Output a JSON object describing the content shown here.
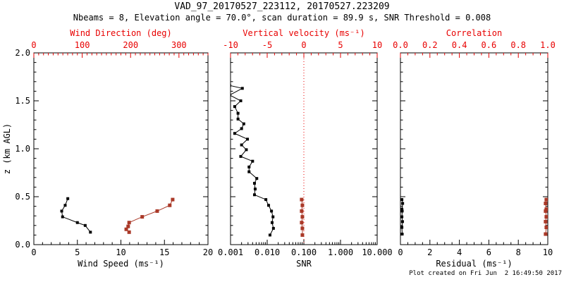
{
  "colors": {
    "black": "#000000",
    "frame": "#000000",
    "axis_red": "#e80000",
    "data_red": "#aa3928"
  },
  "chart_data": {
    "type": "line",
    "title": "VAD_97_20170527_223112, 20170527.223209",
    "subtitle": "Nbeams = 8, Elevation angle = 70.0°, scan duration = 89.9 s, SNR Threshold = 0.008",
    "footer": "Plot created on Fri Jun  2 16:49:50 2017",
    "y_axis": {
      "label": "z (km AGL)",
      "range": [
        0,
        2
      ],
      "tick_values": [
        0,
        0.5,
        1.0,
        1.5,
        2.0
      ],
      "tick_labels": [
        "0.0",
        "0.5",
        "1.0",
        "1.5",
        "2.0"
      ],
      "minor_step": 0.1
    },
    "panels": [
      {
        "name": "wind",
        "bottom_axis": {
          "label": "Wind Speed (ms⁻¹)",
          "scale": "linear",
          "range": [
            0,
            20
          ],
          "tick_values": [
            0,
            5,
            10,
            15,
            20
          ],
          "tick_labels": [
            "0",
            "5",
            "10",
            "15",
            "20"
          ],
          "minor_step": 1,
          "color": "black"
        },
        "top_axis": {
          "label": "Wind Direction (deg)",
          "scale": "linear",
          "range": [
            0,
            360
          ],
          "tick_values": [
            0,
            100,
            200,
            300
          ],
          "tick_labels": [
            "0",
            "100",
            "200",
            "300"
          ],
          "minor_step": 10,
          "color": "axis_red"
        },
        "series": [
          {
            "name": "wind-speed",
            "axis": "bottom",
            "color": "black",
            "points": [
              [
                6.5,
                0.13
              ],
              [
                5.9,
                0.2
              ],
              [
                5.0,
                0.23
              ],
              [
                3.3,
                0.29
              ],
              [
                3.2,
                0.35
              ],
              [
                3.6,
                0.41
              ],
              [
                3.9,
                0.48
              ]
            ]
          },
          {
            "name": "wind-direction",
            "axis": "top",
            "color": "data_red",
            "points": [
              [
                197,
                0.13
              ],
              [
                191,
                0.16
              ],
              [
                195,
                0.19
              ],
              [
                197,
                0.23
              ],
              [
                224,
                0.29
              ],
              [
                255,
                0.35
              ],
              [
                281,
                0.41
              ],
              [
                287,
                0.47
              ]
            ]
          }
        ]
      },
      {
        "name": "snr",
        "bottom_axis": {
          "label": "SNR",
          "scale": "log",
          "range": [
            0.001,
            10
          ],
          "tick_values": [
            0.001,
            0.01,
            0.1,
            1,
            10
          ],
          "tick_labels": [
            "0.001",
            "0.010",
            "0.100",
            "1.000",
            "10.000"
          ],
          "color": "black"
        },
        "top_axis": {
          "label": "Vertical velocity (ms⁻¹)",
          "scale": "linear",
          "range": [
            -10,
            10
          ],
          "tick_values": [
            -10,
            -5,
            0,
            5,
            10
          ],
          "tick_labels": [
            "-10",
            "-5",
            "0",
            "5",
            "10"
          ],
          "minor_step": 1,
          "color": "axis_red"
        },
        "reference_line": {
          "axis": "bottom",
          "value": 0.1,
          "color": "axis_red",
          "style": "dotted"
        },
        "series": [
          {
            "name": "snr-profile",
            "axis": "bottom",
            "color": "black",
            "points": [
              [
                0.00095,
                1.66
              ],
              [
                0.0021,
                1.63
              ],
              [
                0.00095,
                1.56
              ],
              [
                0.0019,
                1.5
              ],
              [
                0.0013,
                1.44
              ],
              [
                0.0016,
                1.37
              ],
              [
                0.0016,
                1.31
              ],
              [
                0.0023,
                1.26
              ],
              [
                0.002,
                1.21
              ],
              [
                0.0013,
                1.16
              ],
              [
                0.0029,
                1.1
              ],
              [
                0.002,
                1.04
              ],
              [
                0.0027,
                0.99
              ],
              [
                0.0019,
                0.92
              ],
              [
                0.004,
                0.87
              ],
              [
                0.0032,
                0.81
              ],
              [
                0.0032,
                0.76
              ],
              [
                0.0052,
                0.69
              ],
              [
                0.0045,
                0.64
              ],
              [
                0.0047,
                0.58
              ],
              [
                0.0045,
                0.52
              ],
              [
                0.0092,
                0.47
              ],
              [
                0.0109,
                0.41
              ],
              [
                0.0131,
                0.35
              ],
              [
                0.0144,
                0.29
              ],
              [
                0.0136,
                0.23
              ],
              [
                0.0148,
                0.17
              ],
              [
                0.0119,
                0.1
              ]
            ]
          },
          {
            "name": "vertical-velocity",
            "axis": "top",
            "color": "data_red",
            "points": [
              [
                -0.3,
                0.47
              ],
              [
                -0.2,
                0.41
              ],
              [
                -0.3,
                0.35
              ],
              [
                -0.2,
                0.29
              ],
              [
                -0.3,
                0.23
              ],
              [
                -0.2,
                0.17
              ],
              [
                -0.2,
                0.1
              ]
            ]
          }
        ]
      },
      {
        "name": "residual",
        "bottom_axis": {
          "label": "Residual (ms⁻¹)",
          "scale": "linear",
          "range": [
            0,
            10
          ],
          "tick_values": [
            0,
            2,
            4,
            6,
            8,
            10
          ],
          "tick_labels": [
            "0",
            "2",
            "4",
            "6",
            "8",
            "10"
          ],
          "minor_step": 0.5,
          "color": "black"
        },
        "top_axis": {
          "label": "Correlation",
          "scale": "linear",
          "range": [
            0,
            1
          ],
          "tick_values": [
            0,
            0.2,
            0.4,
            0.6,
            0.8,
            1.0
          ],
          "tick_labels": [
            "0.0",
            "0.2",
            "0.4",
            "0.6",
            "0.8",
            "1.0"
          ],
          "minor_step": 0.05,
          "color": "axis_red"
        },
        "series": [
          {
            "name": "residual",
            "axis": "bottom",
            "color": "black",
            "points": [
              [
                0.1,
                0.47
              ],
              [
                0.15,
                0.43
              ],
              [
                0.1,
                0.37
              ],
              [
                0.12,
                0.35
              ],
              [
                0.1,
                0.29
              ],
              [
                0.14,
                0.24
              ],
              [
                0.1,
                0.18
              ],
              [
                0.12,
                0.11
              ]
            ]
          },
          {
            "name": "correlation",
            "axis": "top",
            "color": "data_red",
            "points": [
              [
                0.99,
                0.47
              ],
              [
                0.985,
                0.43
              ],
              [
                0.99,
                0.37
              ],
              [
                0.985,
                0.35
              ],
              [
                0.99,
                0.29
              ],
              [
                0.985,
                0.24
              ],
              [
                0.99,
                0.18
              ],
              [
                0.985,
                0.11
              ]
            ]
          }
        ]
      }
    ]
  }
}
